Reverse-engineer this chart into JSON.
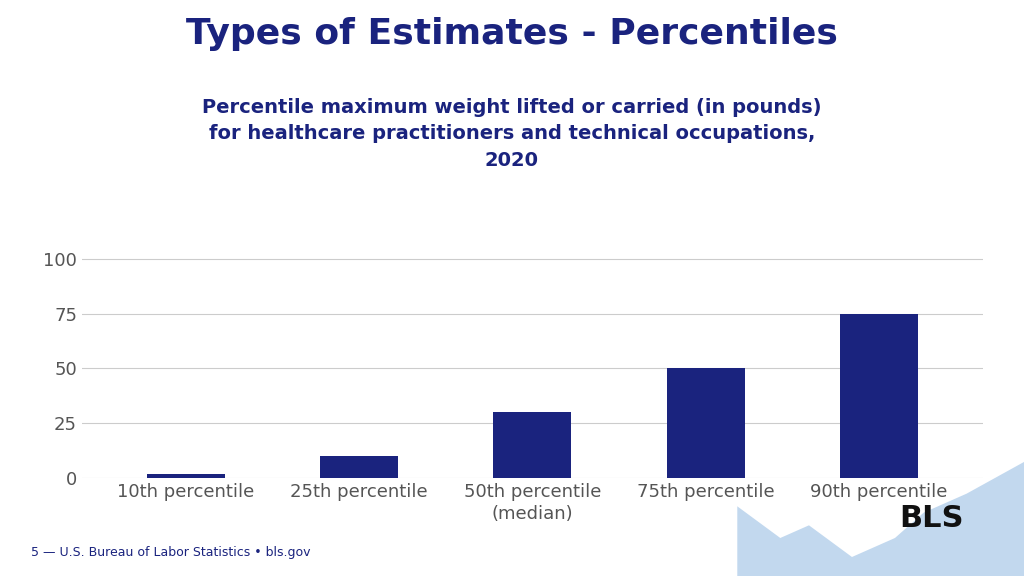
{
  "title": "Types of Estimates - Percentiles",
  "subtitle": "Percentile maximum weight lifted or carried (in pounds)\nfor healthcare practitioners and technical occupations,\n2020",
  "categories": [
    "10th percentile",
    "25th percentile",
    "50th percentile\n(median)",
    "75th percentile",
    "90th percentile"
  ],
  "values": [
    2,
    10,
    30,
    50,
    75
  ],
  "bar_color": "#1a237e",
  "yticks": [
    0,
    25,
    50,
    75,
    100
  ],
  "ylim": [
    0,
    105
  ],
  "background_color": "#ffffff",
  "title_color": "#1a237e",
  "subtitle_color": "#1a237e",
  "title_fontsize": 26,
  "subtitle_fontsize": 14,
  "tick_fontsize": 13,
  "footer_text": "5 — U.S. Bureau of Labor Statistics • bls.gov",
  "footer_color": "#1a237e",
  "grid_color": "#cccccc",
  "bar_width": 0.45
}
